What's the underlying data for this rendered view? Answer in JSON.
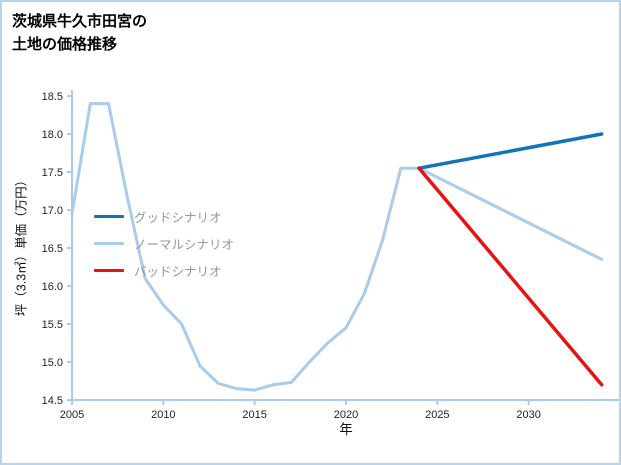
{
  "title": {
    "line1": "茨城県牛久市田宮の",
    "line2": "土地の価格推移"
  },
  "chart_data": {
    "type": "line",
    "title": "茨城県牛久市田宮の土地の価格推移",
    "xlabel": "年",
    "ylabel": "坪（3.3㎡）単価（万円）",
    "xlim": [
      2005,
      2035
    ],
    "ylim": [
      14.5,
      18.5
    ],
    "x_ticks": [
      2005,
      2010,
      2015,
      2020,
      2025,
      2030
    ],
    "y_ticks": [
      14.5,
      15.0,
      15.5,
      16.0,
      16.5,
      17.0,
      17.5,
      18.0,
      18.5
    ],
    "grid": false,
    "legend_position": "left-middle",
    "axis_color": "#a9cbec",
    "tick_text_color": "#222222",
    "series": [
      {
        "name": "グッドシナリオ",
        "color": "#1373b9",
        "width": 3.5,
        "z": 2,
        "x": [
          2024,
          2034
        ],
        "y": [
          17.55,
          18.0
        ]
      },
      {
        "name": "ノーマルシナリオ",
        "color": "#a9cbec",
        "width": 3,
        "z": 1,
        "x": [
          2005,
          2006,
          2007,
          2008,
          2009,
          2010,
          2011,
          2012,
          2013,
          2014,
          2015,
          2016,
          2017,
          2018,
          2019,
          2020,
          2021,
          2022,
          2023,
          2024,
          2034
        ],
        "y": [
          16.95,
          18.4,
          18.4,
          17.2,
          16.1,
          15.75,
          15.5,
          14.95,
          14.72,
          14.65,
          14.63,
          14.7,
          14.73,
          15.0,
          15.25,
          15.45,
          15.9,
          16.6,
          17.55,
          17.55,
          16.35
        ]
      },
      {
        "name": "バッドシナリオ",
        "color": "#e81212",
        "width": 3.5,
        "z": 3,
        "x": [
          2024,
          2034
        ],
        "y": [
          17.55,
          14.7
        ]
      }
    ]
  }
}
